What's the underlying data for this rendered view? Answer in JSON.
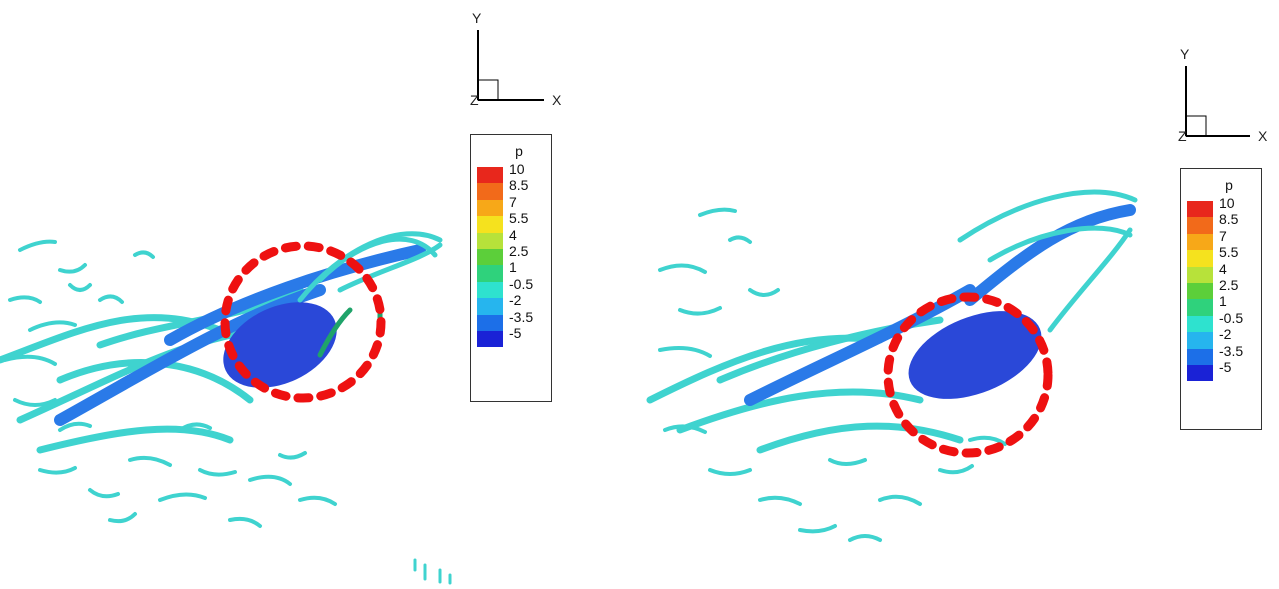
{
  "panels": [
    {
      "axes": {
        "y": "Y",
        "x": "X",
        "z": "Z"
      },
      "legend": {
        "title": "p",
        "labels": [
          "10",
          "8.5",
          "7",
          "5.5",
          "4",
          "2.5",
          "1",
          "-0.5",
          "-2",
          "-3.5",
          "-5"
        ],
        "colors": [
          "#e8271c",
          "#f26a1a",
          "#f7a818",
          "#f5e21e",
          "#b7e23a",
          "#5ccf3a",
          "#2fd27c",
          "#2ee2cf",
          "#26b5ee",
          "#1c6fe8",
          "#1a22d6"
        ]
      }
    },
    {
      "axes": {
        "y": "Y",
        "x": "X",
        "z": "Z"
      },
      "legend": {
        "title": "p",
        "labels": [
          "10",
          "8.5",
          "7",
          "5.5",
          "4",
          "2.5",
          "1",
          "-0.5",
          "-2",
          "-3.5",
          "-5"
        ],
        "colors": [
          "#e8271c",
          "#f26a1a",
          "#f7a818",
          "#f5e21e",
          "#b7e23a",
          "#5ccf3a",
          "#2fd27c",
          "#2ee2cf",
          "#26b5ee",
          "#1c6fe8",
          "#1a22d6"
        ]
      }
    }
  ],
  "colors": {
    "vortex": "#3fd3cf",
    "vortex_dark": "#1f9fb0",
    "core_blue": "#2a48d8",
    "highlight_ring": "#ee1111"
  }
}
